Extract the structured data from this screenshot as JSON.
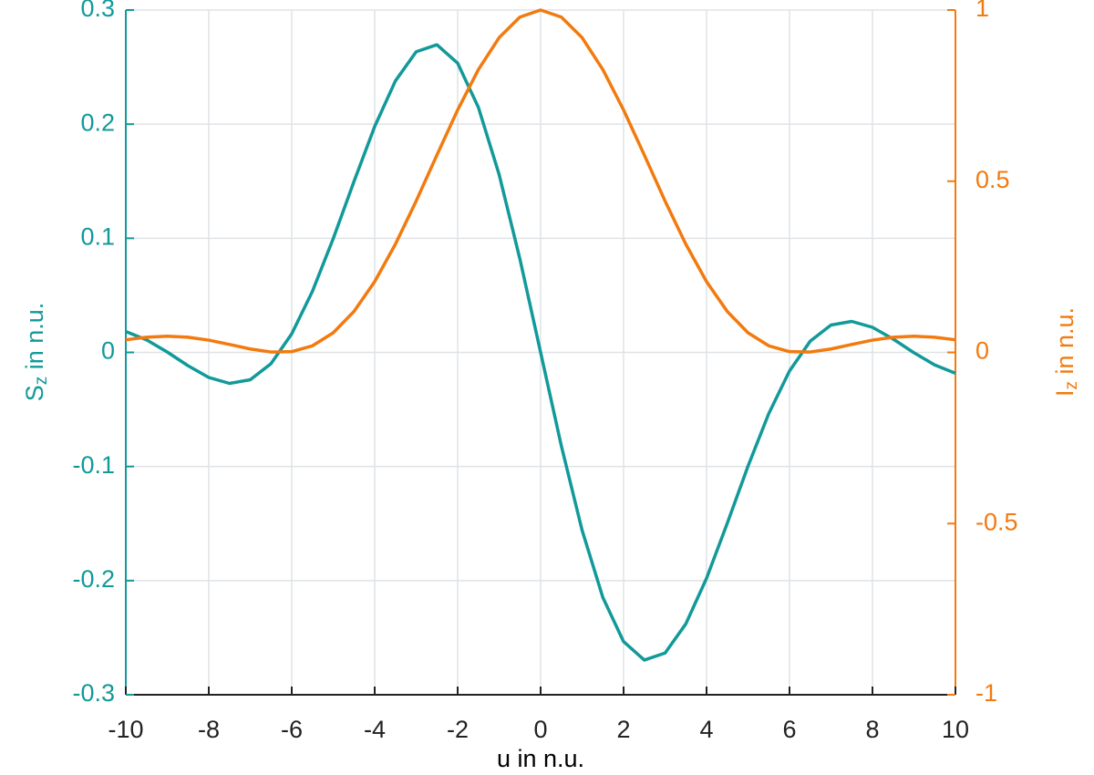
{
  "chart_data": {
    "type": "line",
    "xlabel": "u in n.u.",
    "ylabel": [
      "S",
      "z",
      " in n.u."
    ],
    "y2label": [
      "I",
      "z",
      " in n.u."
    ],
    "x": [
      -10,
      -9.5,
      -9,
      -8.5,
      -8,
      -7.5,
      -7,
      -6.5,
      -6,
      -5.5,
      -5,
      -4.5,
      -4,
      -3.5,
      -3,
      -2.5,
      -2,
      -1.5,
      -1,
      -0.5,
      0,
      0.5,
      1,
      1.5,
      2,
      2.5,
      3,
      3.5,
      4,
      4.5,
      5,
      5.5,
      6,
      6.5,
      7,
      7.5,
      8,
      8.5,
      9,
      9.5,
      10
    ],
    "series": [
      {
        "name": "S",
        "color": "#12999a",
        "axis": "y",
        "values": [
          0.01824,
          0.01098,
          0.00031,
          -0.01167,
          -0.02197,
          -0.02716,
          -0.02395,
          -0.00984,
          0.01626,
          0.05365,
          0.09964,
          0.1497,
          0.19795,
          0.23793,
          0.26345,
          0.26958,
          0.25342,
          0.21469,
          0.15585,
          0.08196,
          0,
          -0.08196,
          -0.15585,
          -0.21469,
          -0.25342,
          -0.26958,
          -0.26345,
          -0.23793,
          -0.19795,
          -0.1497,
          -0.09964,
          -0.05365,
          -0.01626,
          0.00984,
          0.02395,
          0.02716,
          0.02197,
          0.01167,
          -0.00031,
          -0.01098,
          -0.01824
        ]
      },
      {
        "name": "I",
        "color": "#f27a0f",
        "axis": "y2",
        "values": [
          0.03678,
          0.04426,
          0.04719,
          0.04435,
          0.0358,
          0.02323,
          0.01004,
          0.00111,
          0.00221,
          0.01926,
          0.05731,
          0.11958,
          0.20671,
          0.31616,
          0.44222,
          0.57637,
          0.70807,
          0.82601,
          0.91939,
          0.97934,
          1,
          0.97934,
          0.91939,
          0.82601,
          0.70807,
          0.57637,
          0.44222,
          0.31616,
          0.20671,
          0.11958,
          0.05731,
          0.01926,
          0.00221,
          0.00111,
          0.01004,
          0.02323,
          0.0358,
          0.04435,
          0.04719,
          0.04426,
          0.03678
        ]
      }
    ],
    "xlim": [
      -10,
      10
    ],
    "xticks": [
      -10,
      -8,
      -6,
      -4,
      -2,
      0,
      2,
      4,
      6,
      8,
      10
    ],
    "ylim": [
      -0.3,
      0.3
    ],
    "yticks": [
      -0.3,
      -0.2,
      -0.1,
      0,
      0.1,
      0.2,
      0.3
    ],
    "y2lim": [
      -1,
      1
    ],
    "y2ticks": [
      -1,
      -0.5,
      0,
      0.5,
      1
    ],
    "grid": true
  }
}
